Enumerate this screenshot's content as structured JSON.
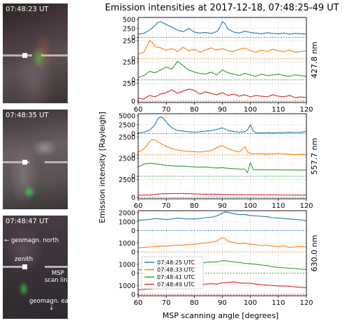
{
  "figure_title": "Emission intensities at 2017-12-18, 07:48:25-49 UT",
  "cameras": [
    {
      "time": "07:48:23 UT"
    },
    {
      "time": "07:48:35 UT"
    },
    {
      "time": "07:48:47 UT",
      "labels": {
        "north": "← geomagn. north",
        "zenith": "zenith",
        "scanline": "MSP\nscan line",
        "east": "geomagn. east\n↓"
      }
    }
  ],
  "chart_data": {
    "type": "line",
    "xlabel": "MSP scanning angle [degrees]",
    "ylabel": "Emission intensity [Rayleigh]",
    "xlim": [
      60,
      120
    ],
    "xticks": [
      60,
      70,
      80,
      90,
      100,
      110,
      120
    ],
    "legend": {
      "placement": "lower-left of bottom panel",
      "entries": [
        "07:48:25 UTC",
        "07:48:33 UTC",
        "07:48:41 UTC",
        "07:48:49 UTC"
      ]
    },
    "colors": [
      "#1f77b4",
      "#ff7f0e",
      "#2ca02c",
      "#d62728"
    ],
    "grid": true,
    "panels": [
      {
        "wavelength_label": "427.8 nm",
        "subplots": [
          {
            "ylim": [
              0,
              500
            ],
            "yticks": [
              0,
              250,
              500
            ],
            "x": [
              60,
              62,
              64,
              66,
              67,
              68,
              70,
              72,
              74,
              76,
              78,
              80,
              82,
              84,
              86,
              88,
              89,
              90,
              91,
              92,
              94,
              96,
              98,
              100,
              102,
              104,
              106,
              108,
              110,
              112,
              114,
              116,
              118,
              120
            ],
            "y": [
              90,
              110,
              200,
              330,
              420,
              440,
              360,
              290,
              200,
              160,
              250,
              150,
              120,
              140,
              110,
              160,
              260,
              440,
              380,
              230,
              150,
              120,
              170,
              140,
              120,
              100,
              130,
              110,
              100,
              120,
              90,
              110,
              100,
              90
            ]
          },
          {
            "ylim": [
              0,
              250
            ],
            "yticks": [
              0,
              250
            ],
            "x": [
              60,
              62,
              64,
              65,
              66,
              68,
              70,
              72,
              74,
              76,
              78,
              80,
              82,
              84,
              86,
              88,
              90,
              92,
              94,
              96,
              98,
              100,
              102,
              104,
              106,
              108,
              110,
              112,
              114,
              116,
              118,
              120
            ],
            "y": [
              60,
              90,
              250,
              230,
              170,
              150,
              120,
              140,
              100,
              160,
              110,
              130,
              90,
              120,
              150,
              120,
              140,
              110,
              100,
              130,
              150,
              110,
              90,
              120,
              100,
              130,
              110,
              100,
              120,
              90,
              100,
              110
            ]
          },
          {
            "ylim": [
              0,
              250
            ],
            "yticks": [
              0,
              250
            ],
            "x": [
              60,
              62,
              64,
              66,
              68,
              70,
              72,
              74,
              76,
              78,
              80,
              82,
              84,
              86,
              88,
              90,
              92,
              94,
              96,
              98,
              100,
              102,
              104,
              106,
              108,
              110,
              112,
              114,
              116,
              118,
              120
            ],
            "y": [
              30,
              60,
              120,
              100,
              140,
              180,
              150,
              260,
              200,
              140,
              110,
              90,
              80,
              110,
              70,
              140,
              100,
              80,
              60,
              90,
              70,
              50,
              80,
              60,
              70,
              80,
              60,
              50,
              70,
              60,
              50
            ]
          },
          {
            "ylim": [
              0,
              250
            ],
            "yticks": [
              0,
              250
            ],
            "x": [
              60,
              62,
              64,
              66,
              68,
              70,
              72,
              74,
              76,
              78,
              80,
              82,
              84,
              86,
              88,
              90,
              92,
              94,
              96,
              98,
              100,
              102,
              104,
              106,
              108,
              110,
              112,
              114,
              116,
              118,
              120
            ],
            "y": [
              40,
              30,
              80,
              60,
              100,
              120,
              160,
              110,
              140,
              170,
              150,
              100,
              130,
              110,
              90,
              120,
              80,
              100,
              70,
              90,
              60,
              80,
              70,
              60,
              90,
              70,
              60,
              80,
              50,
              60,
              50
            ]
          }
        ]
      },
      {
        "wavelength_label": "557.7 nm",
        "subplots": [
          {
            "ylim": [
              0,
              5000
            ],
            "yticks": [
              0,
              2500,
              5000
            ],
            "x": [
              60,
              62,
              64,
              66,
              67,
              68,
              69,
              70,
              72,
              74,
              76,
              78,
              80,
              82,
              84,
              86,
              88,
              90,
              92,
              94,
              96,
              98,
              99,
              100,
              101,
              102,
              104,
              106,
              108,
              110,
              112,
              114,
              116,
              118,
              120
            ],
            "y": [
              200,
              400,
              900,
              2500,
              4200,
              4700,
              4300,
              3200,
              1600,
              900,
              700,
              500,
              400,
              500,
              700,
              800,
              1200,
              1600,
              900,
              600,
              400,
              500,
              1000,
              2500,
              700,
              200,
              200,
              250,
              200,
              250,
              300,
              350,
              300,
              350,
              600
            ]
          },
          {
            "ylim": [
              0,
              2500
            ],
            "yticks": [
              0,
              2500
            ],
            "x": [
              60,
              62,
              64,
              65,
              66,
              68,
              70,
              72,
              74,
              76,
              78,
              80,
              82,
              84,
              86,
              88,
              90,
              92,
              94,
              96,
              97,
              98,
              99,
              100,
              102,
              104,
              106,
              108,
              110,
              112,
              114,
              116,
              118,
              120
            ],
            "y": [
              400,
              800,
              1800,
              2200,
              2100,
              1600,
              1200,
              900,
              700,
              550,
              500,
              450,
              400,
              500,
              600,
              1000,
              1300,
              900,
              600,
              400,
              700,
              1200,
              400,
              200,
              150,
              150,
              100,
              150,
              200,
              150,
              100,
              50,
              100,
              60
            ]
          },
          {
            "ylim": [
              0,
              2500
            ],
            "yticks": [
              0,
              2500
            ],
            "x": [
              60,
              62,
              64,
              66,
              68,
              70,
              72,
              74,
              76,
              78,
              80,
              82,
              84,
              86,
              88,
              90,
              92,
              94,
              96,
              98,
              99,
              100,
              101,
              102,
              104,
              106,
              108,
              110,
              112,
              114,
              116,
              118,
              120
            ],
            "y": [
              1300,
              1700,
              1800,
              1750,
              1650,
              1500,
              1450,
              1400,
              1400,
              1350,
              1300,
              1250,
              1300,
              1200,
              1150,
              1200,
              1100,
              1050,
              1000,
              980,
              500,
              1900,
              950,
              900,
              900,
              880,
              880,
              870,
              870,
              860,
              860,
              850,
              840
            ]
          },
          {
            "ylim": [
              0,
              2500
            ],
            "yticks": [
              0,
              2500
            ],
            "x": [
              60,
              64,
              68,
              72,
              76,
              80,
              84,
              88,
              92,
              96,
              100,
              104,
              108,
              112,
              116,
              120
            ],
            "y": [
              300,
              350,
              500,
              550,
              550,
              500,
              450,
              450,
              400,
              380,
              380,
              360,
              350,
              340,
              330,
              320
            ]
          }
        ]
      },
      {
        "wavelength_label": "630.0 nm",
        "subplots": [
          {
            "ylim": [
              0,
              2000
            ],
            "yticks": [
              0,
              1000,
              2000
            ],
            "x": [
              60,
              62,
              64,
              66,
              68,
              70,
              72,
              74,
              76,
              78,
              80,
              82,
              84,
              86,
              88,
              90,
              91,
              92,
              94,
              96,
              98,
              100,
              102,
              104,
              106,
              108,
              110,
              112,
              114,
              116,
              118,
              120
            ],
            "y": [
              1150,
              1200,
              1250,
              1350,
              1300,
              1250,
              1300,
              1400,
              1350,
              1300,
              1300,
              1350,
              1450,
              1500,
              1650,
              1950,
              2100,
              2050,
              1900,
              1800,
              1800,
              1700,
              1650,
              1600,
              1550,
              1450,
              1400,
              1350,
              1300,
              1250,
              1200,
              1100
            ]
          },
          {
            "ylim": [
              0,
              2000
            ],
            "yticks": [
              0,
              1000
            ],
            "x": [
              60,
              62,
              64,
              66,
              68,
              70,
              72,
              74,
              76,
              78,
              80,
              82,
              84,
              86,
              88,
              89,
              90,
              91,
              92,
              94,
              96,
              98,
              100,
              102,
              104,
              106,
              108,
              110,
              112,
              114,
              116,
              118,
              120
            ],
            "y": [
              450,
              500,
              550,
              600,
              650,
              650,
              700,
              750,
              750,
              800,
              850,
              950,
              1000,
              1100,
              1200,
              1400,
              1600,
              1500,
              1200,
              1050,
              900,
              1000,
              850,
              800,
              700,
              750,
              650,
              600,
              700,
              500,
              550,
              600,
              550
            ]
          },
          {
            "ylim": [
              0,
              2000
            ],
            "yticks": [
              0,
              1000
            ],
            "x": [
              60,
              62,
              64,
              66,
              68,
              70,
              72,
              74,
              76,
              78,
              80,
              82,
              84,
              86,
              88,
              90,
              92,
              94,
              96,
              98,
              100,
              102,
              104,
              106,
              108,
              110,
              112,
              114,
              116,
              118,
              120
            ],
            "y": [
              350,
              400,
              500,
              600,
              650,
              700,
              750,
              750,
              850,
              900,
              1050,
              1100,
              1200,
              1250,
              1250,
              1400,
              1350,
              1250,
              1200,
              1100,
              1050,
              1000,
              900,
              850,
              700,
              650,
              600,
              550,
              500,
              450,
              400
            ]
          },
          {
            "ylim": [
              0,
              2000
            ],
            "yticks": [
              0,
              1000
            ],
            "x": [
              60,
              62,
              64,
              66,
              68,
              70,
              72,
              74,
              76,
              78,
              80,
              82,
              84,
              86,
              88,
              90,
              92,
              94,
              96,
              98,
              100,
              102,
              104,
              106,
              108,
              110,
              112,
              114,
              116,
              118,
              120
            ],
            "y": [
              500,
              550,
              600,
              650,
              700,
              800,
              850,
              900,
              950,
              1000,
              1050,
              1100,
              1150,
              1200,
              1150,
              1300,
              1350,
              1400,
              1300,
              1250,
              1250,
              1150,
              1100,
              1050,
              1000,
              950,
              950,
              900,
              850,
              800,
              750
            ]
          }
        ]
      }
    ]
  }
}
